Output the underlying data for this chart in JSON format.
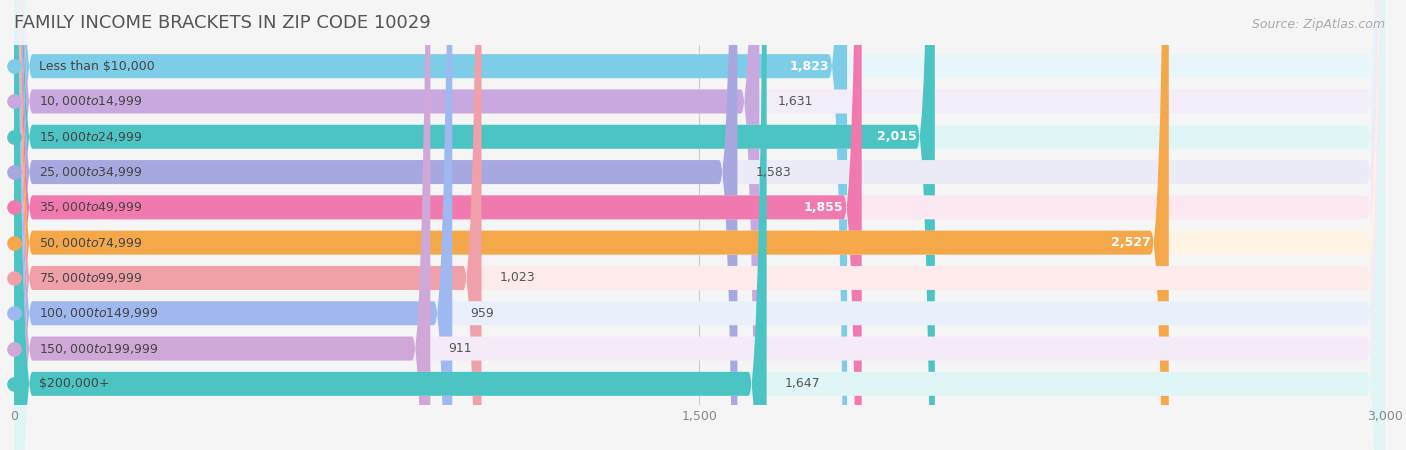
{
  "title": "FAMILY INCOME BRACKETS IN ZIP CODE 10029",
  "source_text": "Source: ZipAtlas.com",
  "categories": [
    "Less than $10,000",
    "$10,000 to $14,999",
    "$15,000 to $24,999",
    "$25,000 to $34,999",
    "$35,000 to $49,999",
    "$50,000 to $74,999",
    "$75,000 to $99,999",
    "$100,000 to $149,999",
    "$150,000 to $199,999",
    "$200,000+"
  ],
  "values": [
    1823,
    1631,
    2015,
    1583,
    1855,
    2527,
    1023,
    959,
    911,
    1647
  ],
  "bar_colors": [
    "#7ecde8",
    "#c9a8e0",
    "#4dc4c4",
    "#a8a8e0",
    "#f07ab0",
    "#f5a84a",
    "#f0a0a8",
    "#a0b8f0",
    "#d0a8d8",
    "#4dc4c4"
  ],
  "bar_bg_colors": [
    "#e8f5fb",
    "#f2edf8",
    "#e0f5f5",
    "#ebebf7",
    "#fce8f2",
    "#fef3e5",
    "#fdeaea",
    "#eaeffc",
    "#f5eaf8",
    "#e0f5f5"
  ],
  "dot_colors": [
    "#7ecde8",
    "#c9a8e0",
    "#4dc4c4",
    "#a8a8e0",
    "#f07ab0",
    "#f5a84a",
    "#f0a0a8",
    "#a0b8f0",
    "#d0a8d8",
    "#4dc4c4"
  ],
  "label_inside": [
    true,
    false,
    true,
    false,
    true,
    true,
    false,
    false,
    false,
    false
  ],
  "xlim": [
    0,
    3000
  ],
  "xticks": [
    0,
    1500,
    3000
  ],
  "title_fontsize": 13,
  "source_fontsize": 9,
  "cat_label_fontsize": 9,
  "val_label_fontsize": 9,
  "tick_fontsize": 9,
  "bar_height": 0.68,
  "background_color": "#f5f5f5",
  "plot_bg_color": "#f5f5f5"
}
